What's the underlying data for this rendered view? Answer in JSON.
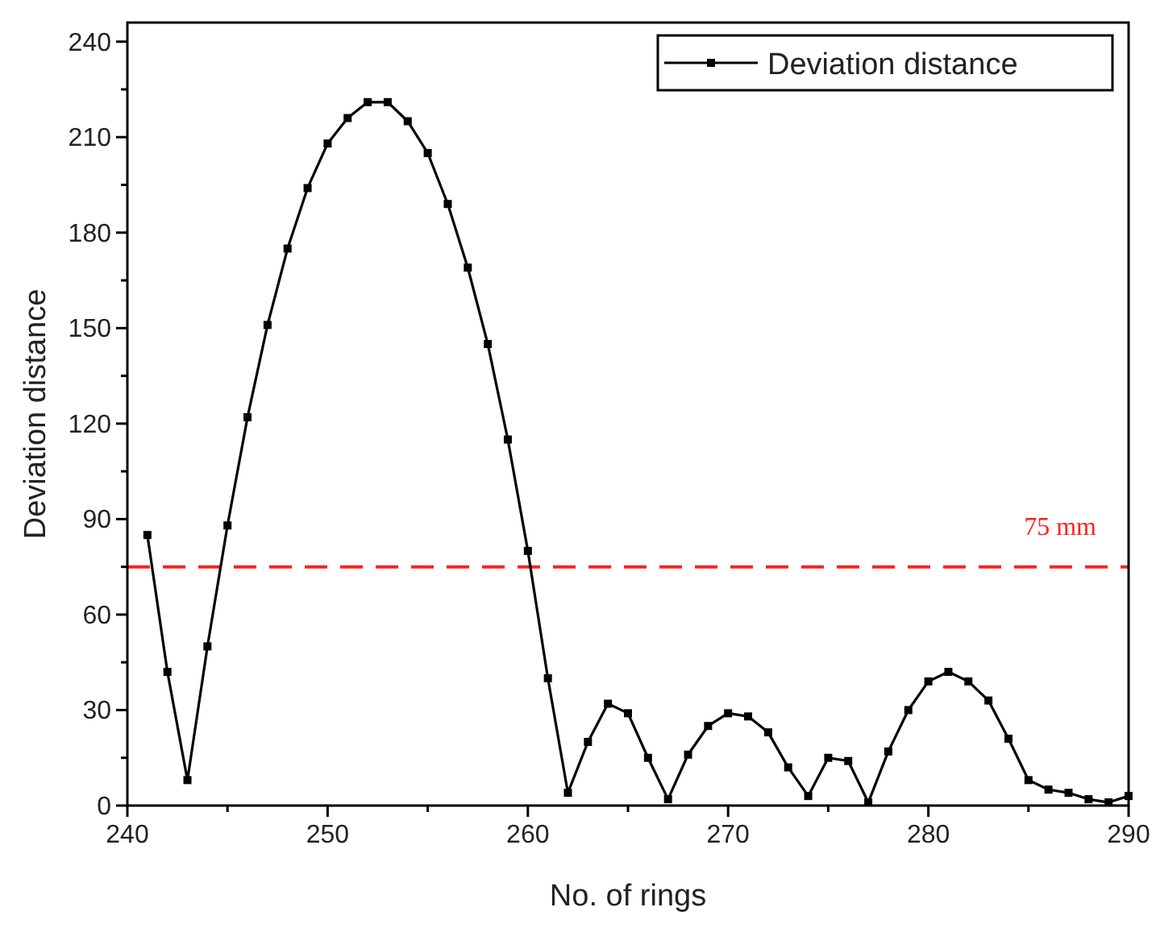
{
  "chart_data": {
    "type": "line",
    "xlabel": "No. of rings",
    "ylabel": "Deviation distance",
    "x": [
      241,
      242,
      243,
      244,
      245,
      246,
      247,
      248,
      249,
      250,
      251,
      252,
      253,
      254,
      255,
      256,
      257,
      258,
      259,
      260,
      261,
      262,
      263,
      264,
      265,
      266,
      267,
      268,
      269,
      270,
      271,
      272,
      273,
      274,
      275,
      276,
      277,
      278,
      279,
      280,
      281,
      282,
      283,
      284,
      285,
      286,
      287,
      288,
      289,
      290
    ],
    "series": [
      {
        "name": "Deviation distance",
        "color": "#000000",
        "values": [
          85,
          42,
          8,
          50,
          88,
          122,
          151,
          175,
          194,
          208,
          216,
          221,
          221,
          215,
          205,
          189,
          169,
          145,
          115,
          80,
          40,
          4,
          20,
          32,
          29,
          15,
          2,
          16,
          25,
          29,
          28,
          23,
          12,
          3,
          15,
          14,
          1,
          17,
          30,
          39,
          42,
          39,
          33,
          21,
          8,
          5,
          4,
          2,
          1,
          3
        ]
      }
    ],
    "xlim": [
      240,
      290
    ],
    "xticks": [
      240,
      250,
      260,
      270,
      280,
      290
    ],
    "ylim": [
      0,
      246
    ],
    "yticks": [
      0,
      30,
      60,
      90,
      120,
      150,
      180,
      210,
      240
    ],
    "ref_lines": [
      {
        "axis": "y",
        "value": 75,
        "label": "75 mm",
        "color": "#ff2020",
        "line_style": "dashed"
      }
    ],
    "marker": "square",
    "line_style": "solid",
    "legend": "top right",
    "grid": false
  }
}
